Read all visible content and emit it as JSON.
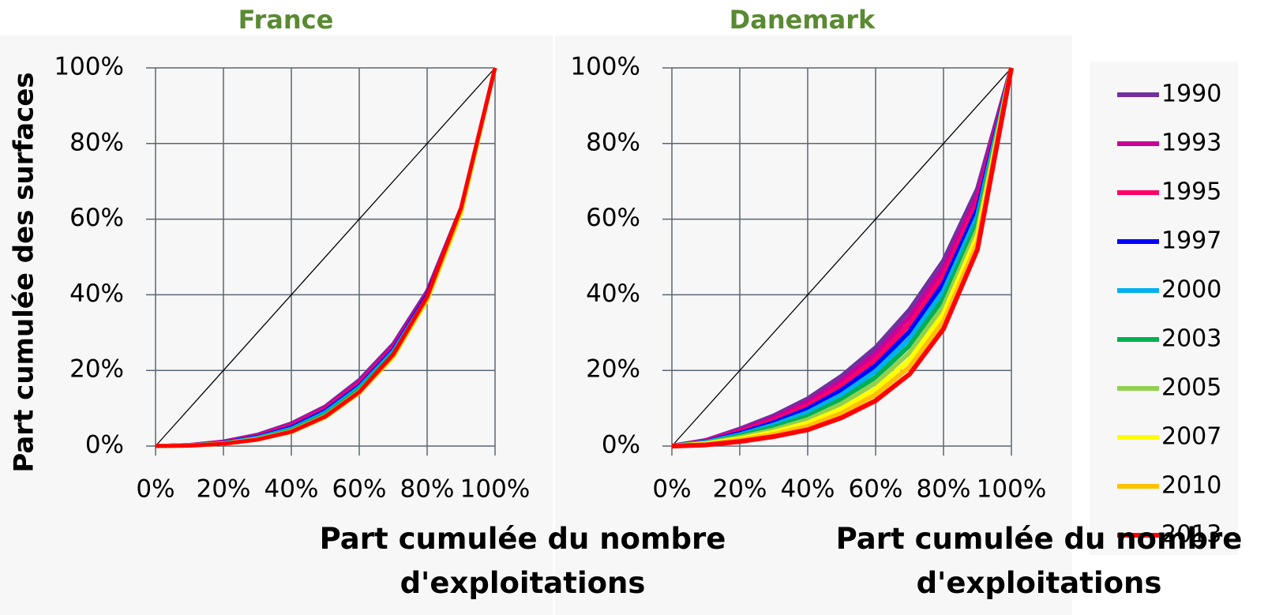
{
  "chart_data": [
    {
      "type": "line",
      "title": "France",
      "ylabel": "Part cumulée des surfaces",
      "xlabel": "Part cumulée du nombre d'exploitations",
      "x": [
        0,
        10,
        20,
        30,
        40,
        50,
        60,
        70,
        80,
        90,
        100
      ],
      "xlim": [
        0,
        100
      ],
      "ylim": [
        0,
        100
      ],
      "xticks": [
        {
          "value": 0,
          "label": "0%"
        },
        {
          "value": 20,
          "label": "20%"
        },
        {
          "value": 40,
          "label": "40%"
        },
        {
          "value": 60,
          "label": "60%"
        },
        {
          "value": 80,
          "label": "80%"
        },
        {
          "value": 100,
          "label": "100%"
        }
      ],
      "yticks": [
        {
          "value": 0,
          "label": "0%"
        },
        {
          "value": 20,
          "label": "20%"
        },
        {
          "value": 40,
          "label": "40%"
        },
        {
          "value": 60,
          "label": "60%"
        },
        {
          "value": 80,
          "label": "80%"
        },
        {
          "value": 100,
          "label": "100%"
        }
      ],
      "grid": true,
      "reference_line": {
        "x": [
          0,
          100
        ],
        "y": [
          0,
          100
        ],
        "color": "#000000"
      },
      "series": [
        {
          "values": [
            0,
            0.3,
            1.2,
            3,
            6,
            10.5,
            17.5,
            27,
            41,
            63,
            100
          ]
        },
        {
          "values": [
            0,
            0.3,
            1.1,
            2.8,
            5.7,
            10.2,
            17,
            26.5,
            40.5,
            62.5,
            100
          ]
        },
        {
          "values": [
            0,
            0.3,
            1,
            2.6,
            5.4,
            9.8,
            16.5,
            26,
            40,
            62,
            100
          ]
        },
        {
          "values": [
            0,
            0.2,
            0.9,
            2.4,
            5,
            9.4,
            16,
            25.5,
            40,
            62,
            100
          ]
        },
        {
          "values": [
            0,
            0.2,
            0.8,
            2.2,
            4.6,
            8.9,
            15.5,
            25,
            39.5,
            62,
            100
          ]
        },
        {
          "values": [
            0,
            0.2,
            0.7,
            2,
            4.3,
            8.4,
            15,
            24.5,
            39,
            61.5,
            100
          ]
        },
        {
          "values": [
            0,
            0.2,
            0.7,
            1.9,
            4,
            8,
            14.5,
            24,
            38.5,
            61.5,
            100
          ]
        },
        {
          "values": [
            0,
            0.1,
            0.6,
            1.7,
            3.7,
            7.6,
            14,
            23.5,
            38.5,
            61.5,
            100
          ]
        },
        {
          "values": [
            0,
            0.1,
            0.6,
            1.7,
            3.7,
            7.6,
            14,
            23.7,
            38.8,
            62,
            100
          ]
        },
        {
          "values": [
            0,
            0.1,
            0.6,
            1.7,
            3.8,
            7.8,
            14.3,
            24.2,
            39.5,
            63,
            100
          ]
        }
      ]
    },
    {
      "type": "line",
      "title": "Danemark",
      "xlabel": "Part cumulée du nombre d'exploitations",
      "x": [
        0,
        10,
        20,
        30,
        40,
        50,
        60,
        70,
        80,
        90,
        100
      ],
      "xlim": [
        0,
        100
      ],
      "ylim": [
        0,
        100
      ],
      "xticks": [
        {
          "value": 0,
          "label": "0%"
        },
        {
          "value": 20,
          "label": "20%"
        },
        {
          "value": 40,
          "label": "40%"
        },
        {
          "value": 60,
          "label": "60%"
        },
        {
          "value": 80,
          "label": "80%"
        },
        {
          "value": 100,
          "label": "100%"
        }
      ],
      "yticks": [
        {
          "value": 0,
          "label": "0%"
        },
        {
          "value": 20,
          "label": "20%"
        },
        {
          "value": 40,
          "label": "40%"
        },
        {
          "value": 60,
          "label": "60%"
        },
        {
          "value": 80,
          "label": "80%"
        },
        {
          "value": 100,
          "label": "100%"
        }
      ],
      "grid": true,
      "reference_line": {
        "x": [
          0,
          100
        ],
        "y": [
          0,
          100
        ],
        "color": "#000000"
      },
      "series": [
        {
          "values": [
            0,
            1.5,
            4.5,
            8,
            12.5,
            18.5,
            26,
            36,
            49,
            68,
            100
          ]
        },
        {
          "values": [
            0,
            1.4,
            4.1,
            7.4,
            11.6,
            17.3,
            24.4,
            34.1,
            47,
            66.2,
            100
          ]
        },
        {
          "values": [
            0,
            1.2,
            3.8,
            6.8,
            10.7,
            16.1,
            22.9,
            32.2,
            45,
            64.4,
            100
          ]
        },
        {
          "values": [
            0,
            1.1,
            3.4,
            6.2,
            9.8,
            14.8,
            21.3,
            30.3,
            43,
            62.7,
            100
          ]
        },
        {
          "values": [
            0,
            1,
            3,
            5.6,
            8.9,
            13.6,
            19.8,
            28.4,
            41,
            60.9,
            100
          ]
        },
        {
          "values": [
            0,
            0.8,
            2.7,
            5,
            7.9,
            12.4,
            18.2,
            26.6,
            39,
            59.1,
            100
          ]
        },
        {
          "values": [
            0,
            0.7,
            2.3,
            4.3,
            7,
            11.2,
            16.7,
            24.7,
            37,
            57.3,
            100
          ]
        },
        {
          "values": [
            0,
            0.6,
            1.9,
            3.7,
            6.1,
            9.9,
            15.1,
            22.8,
            35,
            55.6,
            100
          ]
        },
        {
          "values": [
            0,
            0.4,
            1.6,
            3.1,
            5.2,
            8.7,
            13.6,
            20.9,
            33,
            53.8,
            100
          ]
        },
        {
          "values": [
            0,
            0.3,
            1.2,
            2.5,
            4.3,
            7.5,
            12,
            19,
            31,
            52,
            100
          ]
        }
      ]
    }
  ],
  "legend": {
    "entries": [
      {
        "name": "1990",
        "color": "#7030a0"
      },
      {
        "name": "1993",
        "color": "#cc0099"
      },
      {
        "name": "1995",
        "color": "#ff0066"
      },
      {
        "name": "1997",
        "color": "#0000ff"
      },
      {
        "name": "2000",
        "color": "#00b0f0"
      },
      {
        "name": "2003",
        "color": "#00b050"
      },
      {
        "name": "2005",
        "color": "#92d050"
      },
      {
        "name": "2007",
        "color": "#ffff00"
      },
      {
        "name": "2010",
        "color": "#ffc000"
      },
      {
        "name": "2013",
        "color": "#ff0000"
      }
    ]
  }
}
